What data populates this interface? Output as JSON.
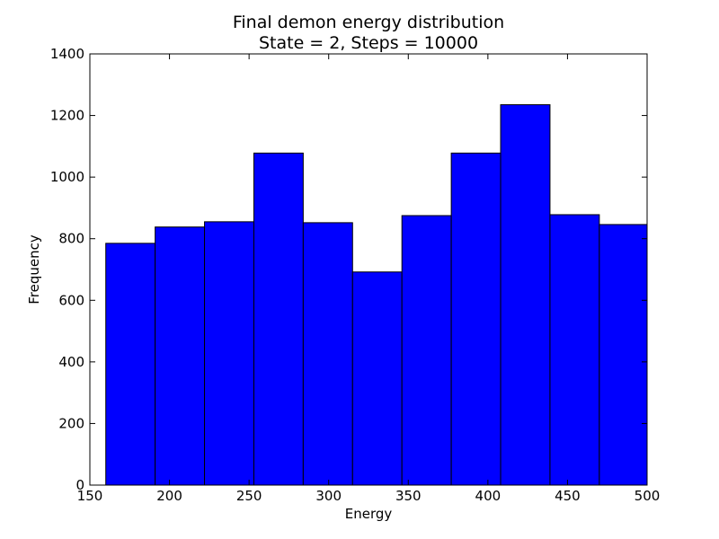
{
  "chart_data": {
    "type": "bar",
    "title": "Final demon energy distribution",
    "subtitle": "State = 2, Steps = 10000",
    "xlabel": "Energy",
    "ylabel": "Frequency",
    "xlim": [
      150,
      500
    ],
    "ylim": [
      0,
      1400
    ],
    "xticks": [
      "150",
      "200",
      "250",
      "300",
      "350",
      "400",
      "450",
      "500"
    ],
    "yticks": [
      "0",
      "200",
      "400",
      "600",
      "800",
      "1000",
      "1200",
      "1400"
    ],
    "grid": false,
    "bar_color": "#0000ff",
    "bins": [
      {
        "x0": 160,
        "x1": 191,
        "value": 785
      },
      {
        "x0": 191,
        "x1": 222,
        "value": 838
      },
      {
        "x0": 222,
        "x1": 253,
        "value": 855
      },
      {
        "x0": 253,
        "x1": 284,
        "value": 1078
      },
      {
        "x0": 284,
        "x1": 315,
        "value": 852
      },
      {
        "x0": 315,
        "x1": 346,
        "value": 692
      },
      {
        "x0": 346,
        "x1": 377,
        "value": 875
      },
      {
        "x0": 377,
        "x1": 408,
        "value": 1078
      },
      {
        "x0": 408,
        "x1": 439,
        "value": 1235
      },
      {
        "x0": 439,
        "x1": 470,
        "value": 878
      },
      {
        "x0": 470,
        "x1": 500,
        "value": 846
      }
    ]
  }
}
